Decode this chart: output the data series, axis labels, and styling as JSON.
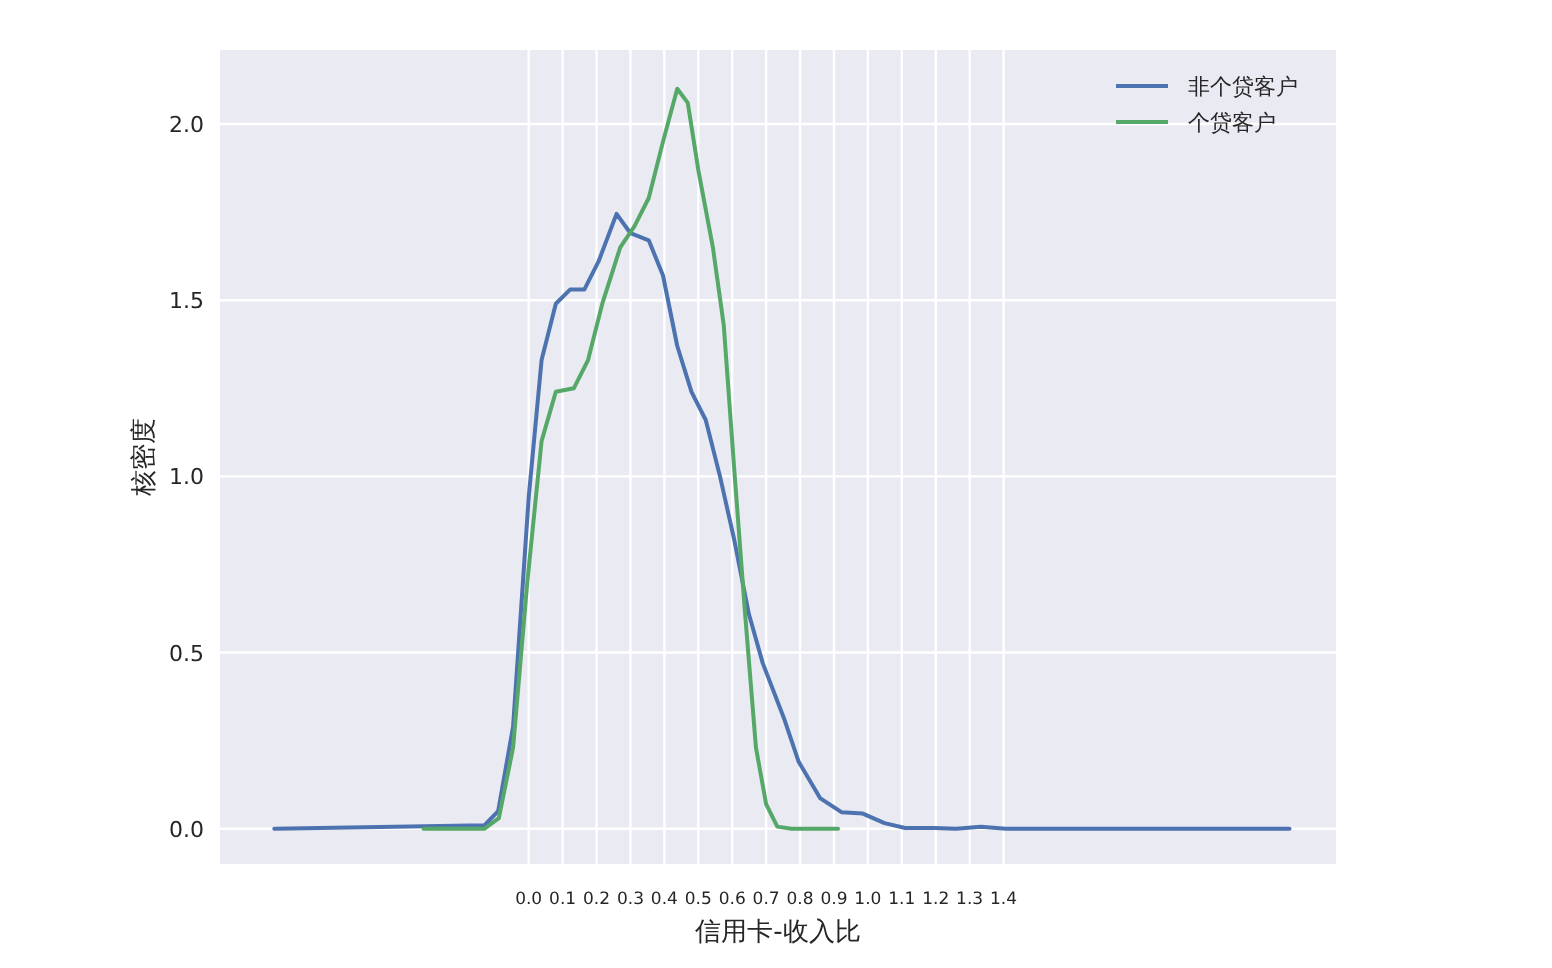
{
  "chart_data": {
    "type": "line",
    "xlabel": "信用卡-收入比",
    "ylabel": "核密度",
    "xlim": [
      -0.91,
      2.38
    ],
    "ylim": [
      -0.1,
      2.21
    ],
    "xticks": [
      {
        "value": 0,
        "label": "0.0"
      },
      {
        "value": 0.1,
        "label": "0.1"
      },
      {
        "value": 0.2,
        "label": "0.2"
      },
      {
        "value": 0.3,
        "label": "0.3"
      },
      {
        "value": 0.4,
        "label": "0.4"
      },
      {
        "value": 0.5,
        "label": "0.5"
      },
      {
        "value": 0.6,
        "label": "0.6"
      },
      {
        "value": 0.7,
        "label": "0.7"
      },
      {
        "value": 0.8,
        "label": "0.8"
      },
      {
        "value": 0.9,
        "label": "0.9"
      },
      {
        "value": 1.0,
        "label": "1.0"
      },
      {
        "value": 1.1,
        "label": "1.1"
      },
      {
        "value": 1.2,
        "label": "1.2"
      },
      {
        "value": 1.3,
        "label": "1.3"
      },
      {
        "value": 1.4,
        "label": "1.4"
      }
    ],
    "yticks": [
      {
        "value": 0,
        "label": "0.0"
      },
      {
        "value": 0.5,
        "label": "0.5"
      },
      {
        "value": 1.0,
        "label": "1.0"
      },
      {
        "value": 1.5,
        "label": "1.5"
      },
      {
        "value": 2.0,
        "label": "2.0"
      }
    ],
    "grid": true,
    "legend": "top right",
    "series": [
      {
        "name": "非个贷客户",
        "color": "#4c72b0",
        "x": [
          -0.75,
          -0.13,
          -0.09,
          -0.046,
          0,
          0.038,
          0.08,
          0.122,
          0.164,
          0.206,
          0.259,
          0.3,
          0.354,
          0.396,
          0.438,
          0.48,
          0.522,
          0.564,
          0.606,
          0.649,
          0.69,
          0.754,
          0.796,
          0.859,
          0.922,
          0.985,
          1.049,
          1.11,
          1.196,
          1.26,
          1.333,
          1.407,
          1.617,
          2.243
        ],
        "values": [
          0,
          0.01,
          0.05,
          0.29,
          0.94,
          1.33,
          1.49,
          1.53,
          1.53,
          1.61,
          1.745,
          1.69,
          1.67,
          1.57,
          1.37,
          1.24,
          1.16,
          1.0,
          0.82,
          0.61,
          0.47,
          0.31,
          0.19,
          0.087,
          0.047,
          0.043,
          0.016,
          0.002,
          0.002,
          0,
          0.006,
          0,
          0,
          0
        ]
      },
      {
        "name": "个贷客户",
        "color": "#55a868",
        "x": [
          -0.31,
          -0.13,
          -0.088,
          -0.046,
          -0.004,
          0.038,
          0.08,
          0.133,
          0.175,
          0.217,
          0.27,
          0.312,
          0.354,
          0.396,
          0.438,
          0.469,
          0.5,
          0.543,
          0.575,
          0.606,
          0.638,
          0.67,
          0.7,
          0.733,
          0.775,
          0.912
        ],
        "values": [
          0,
          0,
          0.03,
          0.23,
          0.7,
          1.1,
          1.24,
          1.25,
          1.33,
          1.49,
          1.65,
          1.71,
          1.79,
          1.95,
          2.1,
          2.06,
          1.87,
          1.65,
          1.43,
          1.02,
          0.61,
          0.23,
          0.07,
          0.006,
          0,
          0
        ]
      }
    ]
  }
}
